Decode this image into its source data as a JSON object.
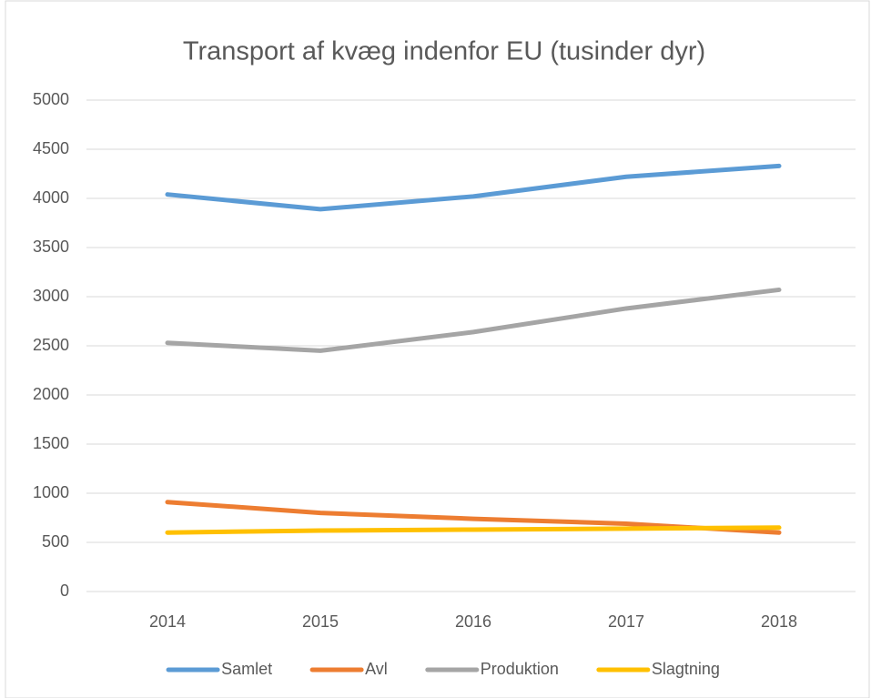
{
  "chart_data": {
    "type": "line",
    "title": "Transport af kvæg indenfor EU (tusinder dyr)",
    "categories": [
      "2014",
      "2015",
      "2016",
      "2017",
      "2018"
    ],
    "series": [
      {
        "name": "Samlet",
        "color": "#5b9bd5",
        "values": [
          4040,
          3890,
          4020,
          4220,
          4330
        ]
      },
      {
        "name": "Avl",
        "color": "#ed7d31",
        "values": [
          910,
          800,
          740,
          690,
          600
        ]
      },
      {
        "name": "Produktion",
        "color": "#a5a5a5",
        "values": [
          2530,
          2450,
          2640,
          2880,
          3070
        ]
      },
      {
        "name": "Slagtning",
        "color": "#ffc000",
        "values": [
          600,
          620,
          630,
          640,
          650
        ]
      }
    ],
    "ylim": [
      0,
      5000
    ],
    "yticks": [
      0,
      500,
      1000,
      1500,
      2000,
      2500,
      3000,
      3500,
      4000,
      4500,
      5000
    ],
    "grid": true,
    "legend": "bottom"
  }
}
